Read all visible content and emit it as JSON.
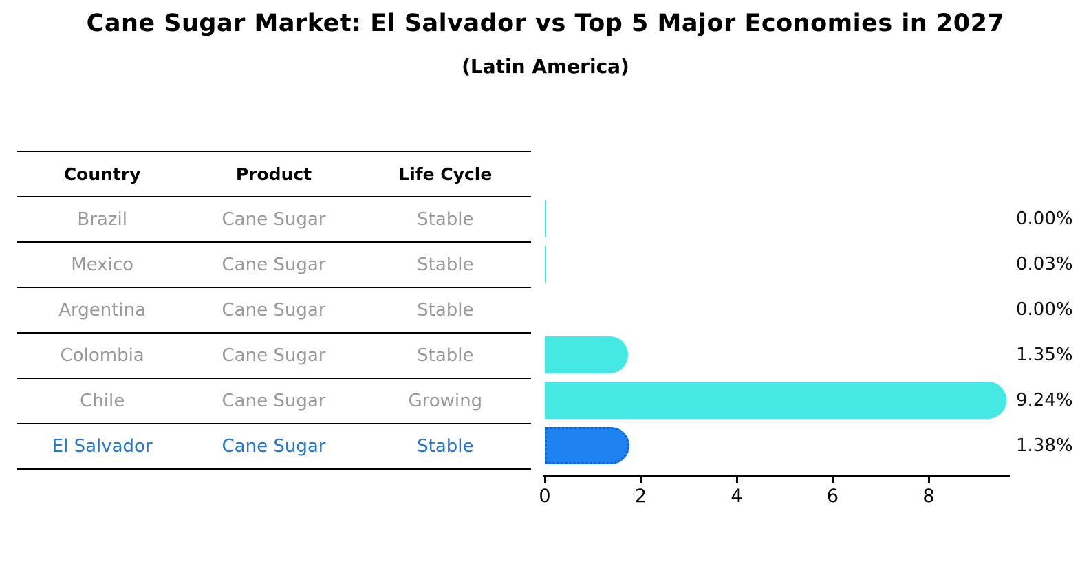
{
  "title": "Cane Sugar Market: El Salvador vs Top 5 Major Economies in 2027",
  "subtitle": "(Latin America)",
  "table": {
    "columns": [
      "Country",
      "Product",
      "Life Cycle"
    ],
    "rows": [
      {
        "country": "Brazil",
        "product": "Cane Sugar",
        "life_cycle": "Stable",
        "highlight": false
      },
      {
        "country": "Mexico",
        "product": "Cane Sugar",
        "life_cycle": "Stable",
        "highlight": false
      },
      {
        "country": "Argentina",
        "product": "Cane Sugar",
        "life_cycle": "Stable",
        "highlight": false
      },
      {
        "country": "Colombia",
        "product": "Cane Sugar",
        "life_cycle": "Stable",
        "highlight": false
      },
      {
        "country": "Chile",
        "product": "Cane Sugar",
        "life_cycle": "Growing",
        "highlight": false
      },
      {
        "country": "El Salvador",
        "product": "Cane Sugar",
        "life_cycle": "Stable",
        "highlight": true
      }
    ]
  },
  "chart_data": {
    "type": "bar",
    "orientation": "horizontal",
    "title": "Cane Sugar Market: El Salvador vs Top 5 Major Economies in 2027",
    "subtitle": "(Latin America)",
    "categories": [
      "Brazil",
      "Mexico",
      "Argentina",
      "Colombia",
      "Chile",
      "El Salvador"
    ],
    "values": [
      0.004,
      0.03,
      0.0,
      1.35,
      9.24,
      1.38
    ],
    "value_labels": [
      "0.00%",
      "0.03%",
      "0.00%",
      "1.35%",
      "9.24%",
      "1.38%"
    ],
    "x_ticks": [
      "0",
      "2",
      "4",
      "6",
      "8"
    ],
    "xlim": [
      0,
      9.7
    ],
    "grid": false,
    "legend": false,
    "bar_color": "#45e8e2",
    "highlight_index": 5,
    "highlight_bar_color": "#1e82f0",
    "highlight_text_color": "#2277d4",
    "label_color": "#111111"
  }
}
